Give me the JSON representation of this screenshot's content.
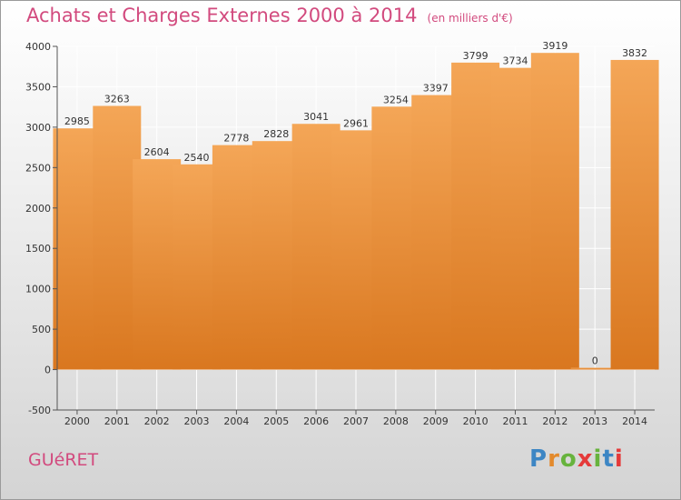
{
  "title": "Achats et Charges Externes 2000 à 2014",
  "subtitle": "(en milliers d'€)",
  "location": "GUéRET",
  "brand": "Proxiti",
  "colors": {
    "title": "#d24a7e",
    "bar_top": "#f4a657",
    "bar_bottom": "#d9771f",
    "grid": "#ffffff",
    "brand_letters": [
      "#3d86c4",
      "#e38a2c",
      "#67b33d",
      "#e53a3a",
      "#67b33d",
      "#3d86c4",
      "#e53a3a"
    ]
  },
  "chart_data": {
    "type": "bar",
    "title": "Achats et Charges Externes 2000 à 2014",
    "subtitle": "(en milliers d'€)",
    "categories": [
      "2000",
      "2001",
      "2002",
      "2003",
      "2004",
      "2005",
      "2006",
      "2007",
      "2008",
      "2009",
      "2010",
      "2011",
      "2012",
      "2013",
      "2014"
    ],
    "values": [
      2985,
      3263,
      2604,
      2540,
      2778,
      2828,
      3041,
      2961,
      3254,
      3397,
      3799,
      3734,
      3919,
      0,
      3832
    ],
    "xlabel": "",
    "ylabel": "",
    "ylim": [
      -500,
      4000
    ],
    "yticks": [
      -500,
      0,
      500,
      1000,
      1500,
      2000,
      2500,
      3000,
      3500,
      4000
    ],
    "grid": true,
    "data_labels": true,
    "legend": "none"
  }
}
